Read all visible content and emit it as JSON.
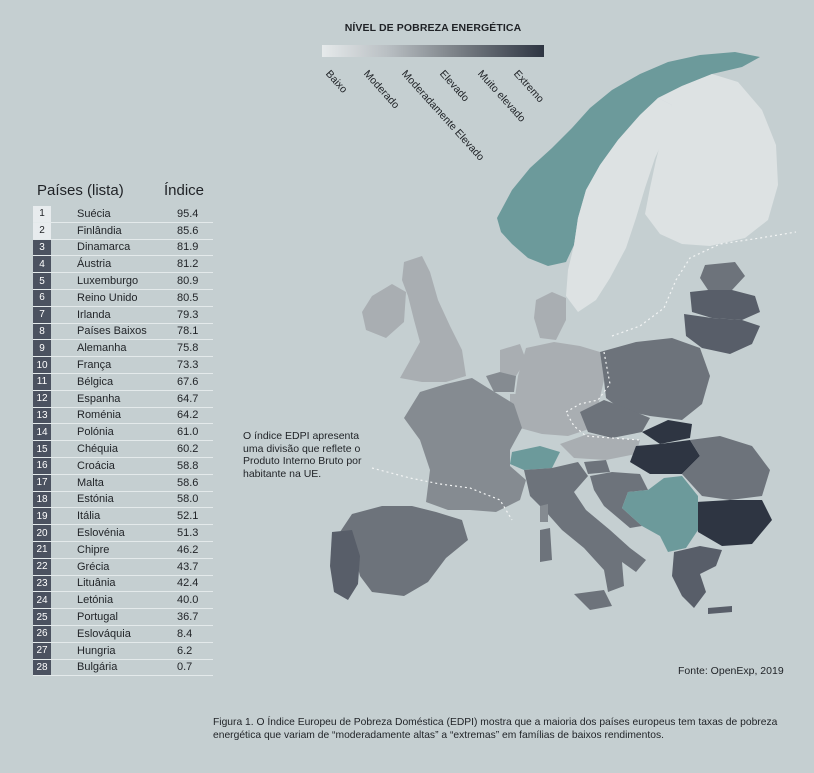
{
  "legend": {
    "title": "NÍVEL DE POBREZA ENERGÉTICA",
    "levels": [
      "Baixo",
      "Moderado",
      "Moderadamente Elevado",
      "Elevado",
      "Muito elevado",
      "Extremo"
    ],
    "colors": [
      "#e6eaeb",
      "#b8bec2",
      "#8f959b",
      "#7c8288",
      "#5a606b",
      "#2e3542"
    ]
  },
  "table": {
    "header_country": "Países (lista)",
    "header_index": "Índice",
    "rows": [
      {
        "rank": "1",
        "country": "Suécia",
        "index": "95.4"
      },
      {
        "rank": "2",
        "country": "Finlândia",
        "index": "85.6"
      },
      {
        "rank": "3",
        "country": "Dinamarca",
        "index": "81.9"
      },
      {
        "rank": "4",
        "country": "Áustria",
        "index": "81.2"
      },
      {
        "rank": "5",
        "country": "Luxemburgo",
        "index": "80.9"
      },
      {
        "rank": "6",
        "country": "Reino Unido",
        "index": "80.5"
      },
      {
        "rank": "7",
        "country": "Irlanda",
        "index": "79.3"
      },
      {
        "rank": "8",
        "country": "Países Baixos",
        "index": "78.1"
      },
      {
        "rank": "9",
        "country": "Alemanha",
        "index": "75.8"
      },
      {
        "rank": "10",
        "country": "França",
        "index": "73.3"
      },
      {
        "rank": "11",
        "country": "Bélgica",
        "index": "67.6"
      },
      {
        "rank": "12",
        "country": "Espanha",
        "index": "64.7"
      },
      {
        "rank": "13",
        "country": "Roménia",
        "index": "64.2"
      },
      {
        "rank": "14",
        "country": "Polónia",
        "index": "61.0"
      },
      {
        "rank": "15",
        "country": "Chéquia",
        "index": "60.2"
      },
      {
        "rank": "16",
        "country": "Croácia",
        "index": "58.8"
      },
      {
        "rank": "17",
        "country": "Malta",
        "index": "58.6"
      },
      {
        "rank": "18",
        "country": "Estónia",
        "index": "58.0"
      },
      {
        "rank": "19",
        "country": "Itália",
        "index": "52.1"
      },
      {
        "rank": "20",
        "country": "Eslovénia",
        "index": "51.3"
      },
      {
        "rank": "21",
        "country": "Chipre",
        "index": "46.2"
      },
      {
        "rank": "22",
        "country": "Grécia",
        "index": "43.7"
      },
      {
        "rank": "23",
        "country": "Lituânia",
        "index": "42.4"
      },
      {
        "rank": "24",
        "country": "Letónia",
        "index": "40.0"
      },
      {
        "rank": "25",
        "country": "Portugal",
        "index": "36.7"
      },
      {
        "rank": "26",
        "country": "Eslováquia",
        "index": "8.4"
      },
      {
        "rank": "27",
        "country": "Hungria",
        "index": "6.2"
      },
      {
        "rank": "28",
        "country": "Bulgária",
        "index": "0.7"
      }
    ]
  },
  "annotation": "O índice EDPI apresenta uma divisão que reflete o Produto Interno Bruto por habitante na UE.",
  "source": "Fonte: OpenExp, 2019",
  "caption": "Figura 1. O Índice Europeu de Pobreza Doméstica (EDPI) mostra que a maioria dos países europeus tem taxas de pobreza energética que variam de “moderadamente altas” a “extremas” em famílias de baixos rendimentos.",
  "map_colors": {
    "background": "#c5cfd1",
    "teal": "#6c9a9b",
    "light": "#dde2e3",
    "mid_light": "#a9aeb2",
    "mid": "#858b91",
    "mid_dark": "#6d737b",
    "dark": "#585e69",
    "darkest": "#2e3542",
    "non_eu": "#9aa0a5"
  }
}
